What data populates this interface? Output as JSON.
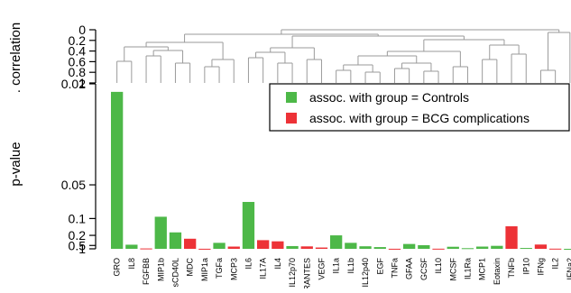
{
  "chart_data": {
    "type": "bar",
    "ylabel": "p-value",
    "dendrogram_label": ". correlation",
    "dendrogram_ticks": [
      "0",
      "0.2",
      "0.4",
      "0.6",
      "0.8",
      "1"
    ],
    "dendrogram_range": [
      0,
      1
    ],
    "yscale": "reciprocal",
    "ylim": [
      0.02,
      1
    ],
    "yticks": [
      "0.02",
      "0.05",
      "0.1",
      "0.2",
      "0.5",
      "1"
    ],
    "ytick_values": [
      0.02,
      0.05,
      0.1,
      0.2,
      0.5,
      1
    ],
    "grid": false,
    "legend_placement": "top-right",
    "series": [
      {
        "name": "assoc. with group = Controls",
        "color": "#4db848"
      },
      {
        "name": "assoc. with group = BCG complications",
        "color": "#ed3237"
      }
    ],
    "categories": [
      "GRO",
      "IL8",
      "FGFBB",
      "MIP1b",
      "sCD40L",
      "MDC",
      "MIP1a",
      "TGFa",
      "MCP3",
      "IL6",
      "IL17A",
      "IL4",
      "IL12p70",
      "RANTES",
      "VEGF",
      "IL1a",
      "IL1b",
      "IL12p40",
      "EGF",
      "TNFa",
      "GFAA",
      "GCSF",
      "IL10",
      "MCSF",
      "IL1Ra",
      "MCP1",
      "Eotaxin",
      "TNFb",
      "IP10",
      "IFNg",
      "IL2",
      "IFNa2"
    ],
    "bars": [
      {
        "category": "GRO",
        "value": 0.021,
        "group": 0
      },
      {
        "category": "IL8",
        "value": 0.45,
        "group": 0
      },
      {
        "category": "FGFBB",
        "value": 0.9,
        "group": 1
      },
      {
        "category": "MIP1b",
        "value": 0.095,
        "group": 0
      },
      {
        "category": "sCD40L",
        "value": 0.17,
        "group": 0
      },
      {
        "category": "MDC",
        "value": 0.25,
        "group": 1
      },
      {
        "category": "MIP1a",
        "value": 0.98,
        "group": 1
      },
      {
        "category": "TGFa",
        "value": 0.36,
        "group": 0
      },
      {
        "category": "MCP3",
        "value": 0.6,
        "group": 1
      },
      {
        "category": "IL6",
        "value": 0.067,
        "group": 0
      },
      {
        "category": "IL17A",
        "value": 0.28,
        "group": 1
      },
      {
        "category": "IL4",
        "value": 0.31,
        "group": 1
      },
      {
        "category": "IL12p70",
        "value": 0.55,
        "group": 0
      },
      {
        "category": "RANTES",
        "value": 0.58,
        "group": 1
      },
      {
        "category": "VEGF",
        "value": 0.72,
        "group": 1
      },
      {
        "category": "IL1a",
        "value": 0.2,
        "group": 0
      },
      {
        "category": "IL1b",
        "value": 0.36,
        "group": 0
      },
      {
        "category": "IL12p40",
        "value": 0.57,
        "group": 0
      },
      {
        "category": "EGF",
        "value": 0.66,
        "group": 0
      },
      {
        "category": "TNFa",
        "value": 0.98,
        "group": 1
      },
      {
        "category": "GFAA",
        "value": 0.41,
        "group": 0
      },
      {
        "category": "GCSF",
        "value": 0.48,
        "group": 0
      },
      {
        "category": "IL10",
        "value": 0.96,
        "group": 1
      },
      {
        "category": "MCSF",
        "value": 0.62,
        "group": 0
      },
      {
        "category": "IL1Ra",
        "value": 0.84,
        "group": 0
      },
      {
        "category": "MCP1",
        "value": 0.6,
        "group": 0
      },
      {
        "category": "Eotaxin",
        "value": 0.53,
        "group": 0
      },
      {
        "category": "TNFb",
        "value": 0.13,
        "group": 1
      },
      {
        "category": "IP10",
        "value": 0.8,
        "group": 0
      },
      {
        "category": "IFNg",
        "value": 0.44,
        "group": 1
      },
      {
        "category": "IL2",
        "value": 0.95,
        "group": 1
      },
      {
        "category": "IFNa2",
        "value": 1.0,
        "group": 0
      }
    ]
  }
}
